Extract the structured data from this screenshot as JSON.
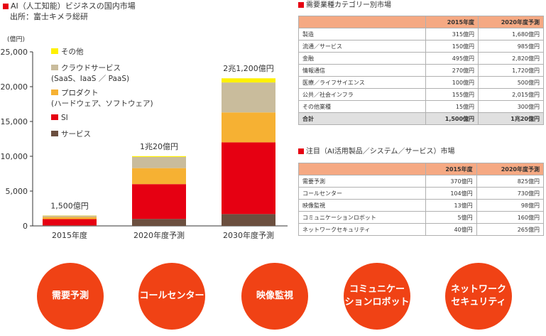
{
  "left_title": "AI（人工知能）ビジネスの国内市場",
  "left_source": "出所：富士キメラ総研",
  "chart_data": {
    "type": "bar",
    "stacked": true,
    "unit_label": "(億円)",
    "categories": [
      "2015年度",
      "2020年度予測",
      "2030年度予測"
    ],
    "totals_labels": [
      "1,500億円",
      "1兆20億円",
      "2兆1,200億円"
    ],
    "ylim": [
      0,
      25000
    ],
    "yticks": [
      0,
      5000,
      10000,
      15000,
      20000,
      25000
    ],
    "ytick_labels": [
      "0",
      "5,000",
      "10,000",
      "15,000",
      "20,000",
      "25,000"
    ],
    "legend_position": "top-left",
    "series": [
      {
        "name": "サービス",
        "values": [
          70,
          1000,
          1700
        ],
        "color": "#6b4f3f"
      },
      {
        "name": "SI",
        "values": [
          900,
          5000,
          10300
        ],
        "color": "#e60012"
      },
      {
        "name": "プロダクト\n(ハードウェア、ソフトウェア)",
        "values": [
          300,
          2300,
          4300
        ],
        "color": "#f6b133"
      },
      {
        "name": "クラウドサービス\n(SaaS、IaaS ／ PaaS)",
        "values": [
          200,
          1600,
          4300
        ],
        "color": "#c9bc9c"
      },
      {
        "name": "その他",
        "values": [
          30,
          120,
          600
        ],
        "color": "#fff100"
      }
    ]
  },
  "demand": {
    "title": "需要業種カテゴリー別市場",
    "headers": [
      "",
      "2015年度",
      "2020年度予測"
    ],
    "rows": [
      [
        "製造",
        "315億円",
        "1,680億円"
      ],
      [
        "流通／サービス",
        "150億円",
        "985億円"
      ],
      [
        "金融",
        "495億円",
        "2,820億円"
      ],
      [
        "情報通信",
        "270億円",
        "1,720億円"
      ],
      [
        "医療／ライフサイエンス",
        "100億円",
        "500億円"
      ],
      [
        "公共／社会インフラ",
        "155億円",
        "2,015億円"
      ],
      [
        "その他業種",
        "15億円",
        "300億円"
      ]
    ],
    "total": [
      "合計",
      "1,500億円",
      "1兆20億円"
    ]
  },
  "focus": {
    "title": "注目（AI活用製品／システム／サービス）市場",
    "headers": [
      "",
      "2015年度",
      "2020年度予測"
    ],
    "rows": [
      [
        "需要予測",
        "370億円",
        "825億円"
      ],
      [
        "コールセンター",
        "104億円",
        "730億円"
      ],
      [
        "映像監視",
        "13億円",
        "98億円"
      ],
      [
        "コミュニケーションロボット",
        "5億円",
        "160億円"
      ],
      [
        "ネットワークセキュリティ",
        "40億円",
        "265億円"
      ]
    ]
  },
  "circles": [
    [
      "需要予測"
    ],
    [
      "コールセンター"
    ],
    [
      "映像監視"
    ],
    [
      "コミュニケー",
      "ションロボット"
    ],
    [
      "ネットワーク",
      "セキュリティ"
    ]
  ],
  "colors": {
    "accent": "#e60012",
    "circle": "#f04215",
    "table_header": "#f5a983"
  }
}
